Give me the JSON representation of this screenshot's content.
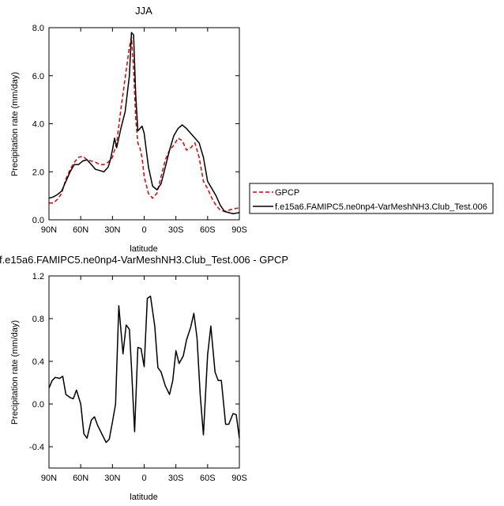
{
  "chart_data": [
    {
      "type": "line",
      "title": "JJA",
      "xlabel": "latitude",
      "ylabel": "Precipitation rate (mm/day)",
      "xlim": [
        90,
        -90
      ],
      "ylim": [
        0,
        8
      ],
      "x_ticks": [
        90,
        60,
        30,
        0,
        -30,
        -60,
        -90
      ],
      "x_tick_labels": [
        "90N",
        "60N",
        "30N",
        "0",
        "30S",
        "60S",
        "90S"
      ],
      "y_ticks": [
        0,
        2,
        4,
        6,
        8
      ],
      "y_tick_labels": [
        "0.0",
        "2.0",
        "4.0",
        "6.0",
        "8.0"
      ],
      "legend_position": "right",
      "series": [
        {
          "name": "GPCP",
          "color": "#e00000",
          "dash": true,
          "x": [
            90,
            86,
            82,
            78,
            74,
            70,
            66,
            62,
            58,
            54,
            50,
            46,
            42,
            38,
            34,
            30,
            26,
            22,
            18,
            14,
            12,
            10,
            8,
            6,
            4,
            2,
            0,
            -4,
            -8,
            -12,
            -16,
            -20,
            -24,
            -28,
            -32,
            -36,
            -40,
            -44,
            -48,
            -52,
            -56,
            -60,
            -64,
            -68,
            -72,
            -76,
            -80,
            -84,
            -90
          ],
          "y": [
            0.7,
            0.7,
            0.85,
            1.1,
            1.7,
            2.1,
            2.4,
            2.6,
            2.65,
            2.5,
            2.45,
            2.4,
            2.3,
            2.3,
            2.4,
            2.6,
            3.2,
            4.6,
            5.9,
            7.2,
            7.6,
            6.3,
            4.2,
            3.2,
            3.0,
            2.6,
            1.8,
            1.1,
            0.9,
            1.1,
            1.8,
            2.5,
            2.9,
            3.1,
            3.4,
            3.3,
            2.9,
            3.0,
            3.2,
            2.6,
            1.6,
            1.3,
            0.9,
            0.6,
            0.4,
            0.35,
            0.4,
            0.45,
            0.5
          ]
        },
        {
          "name": "f.e15a6.FAMIPC5.ne0np4-VarMeshNH3.Club_Test.006",
          "color": "#000000",
          "dash": false,
          "x": [
            90,
            86,
            82,
            78,
            74,
            70,
            66,
            62,
            58,
            54,
            50,
            46,
            42,
            38,
            34,
            32,
            30,
            28,
            26,
            22,
            18,
            14,
            12,
            10,
            8,
            6,
            4,
            2,
            0,
            -4,
            -8,
            -12,
            -16,
            -20,
            -24,
            -28,
            -32,
            -36,
            -40,
            -44,
            -48,
            -52,
            -56,
            -60,
            -64,
            -68,
            -72,
            -76,
            -80,
            -84,
            -90
          ],
          "y": [
            0.9,
            0.95,
            1.05,
            1.2,
            1.6,
            2.0,
            2.3,
            2.3,
            2.45,
            2.5,
            2.3,
            2.1,
            2.05,
            2.0,
            2.2,
            2.5,
            2.9,
            3.4,
            3.0,
            3.8,
            4.5,
            6.0,
            7.8,
            7.7,
            5.2,
            3.7,
            3.8,
            3.9,
            3.6,
            2.2,
            1.4,
            1.25,
            1.5,
            2.2,
            2.9,
            3.5,
            3.8,
            3.95,
            3.8,
            3.6,
            3.4,
            3.2,
            2.6,
            1.6,
            1.3,
            1.0,
            0.6,
            0.35,
            0.3,
            0.25,
            0.3
          ]
        }
      ]
    },
    {
      "type": "line",
      "title": "f.e15a6.FAMIPC5.ne0np4-VarMeshNH3.Club_Test.006 - GPCP",
      "xlabel": "latitude",
      "ylabel": "Precipitation rate (mm/day)",
      "xlim": [
        90,
        -90
      ],
      "ylim": [
        -0.6,
        1.2
      ],
      "x_ticks": [
        90,
        60,
        30,
        0,
        -30,
        -60,
        -90
      ],
      "x_tick_labels": [
        "90N",
        "60N",
        "30N",
        "0",
        "30S",
        "60S",
        "90S"
      ],
      "y_ticks": [
        -0.4,
        0.0,
        0.4,
        0.8,
        1.2
      ],
      "y_tick_labels": [
        "-0.4",
        "0.0",
        "0.4",
        "0.8",
        "1.2"
      ],
      "series": [
        {
          "color": "#000000",
          "x": [
            90,
            87,
            84,
            80,
            77,
            74,
            70,
            67,
            64,
            60,
            57,
            54,
            50,
            47,
            44,
            40,
            36,
            33,
            30,
            27,
            24,
            20,
            17,
            14,
            12,
            9,
            6,
            3,
            0,
            -3,
            -6,
            -10,
            -13,
            -16,
            -20,
            -24,
            -27,
            -30,
            -33,
            -37,
            -40,
            -44,
            -47,
            -50,
            -53,
            -56,
            -60,
            -63,
            -67,
            -70,
            -73,
            -77,
            -80,
            -84,
            -87,
            -90
          ],
          "y": [
            0.15,
            0.22,
            0.25,
            0.24,
            0.26,
            0.09,
            0.06,
            0.05,
            0.13,
            0.0,
            -0.28,
            -0.32,
            -0.15,
            -0.12,
            -0.2,
            -0.28,
            -0.36,
            -0.33,
            -0.17,
            0.0,
            0.92,
            0.47,
            0.74,
            0.7,
            0.35,
            -0.26,
            0.53,
            0.52,
            0.35,
            0.99,
            1.01,
            0.73,
            0.34,
            0.3,
            0.17,
            0.09,
            0.22,
            0.5,
            0.38,
            0.45,
            0.6,
            0.72,
            0.85,
            0.62,
            0.08,
            -0.29,
            0.46,
            0.73,
            0.3,
            0.22,
            0.22,
            -0.19,
            -0.19,
            -0.09,
            -0.1,
            -0.32
          ]
        }
      ]
    }
  ]
}
